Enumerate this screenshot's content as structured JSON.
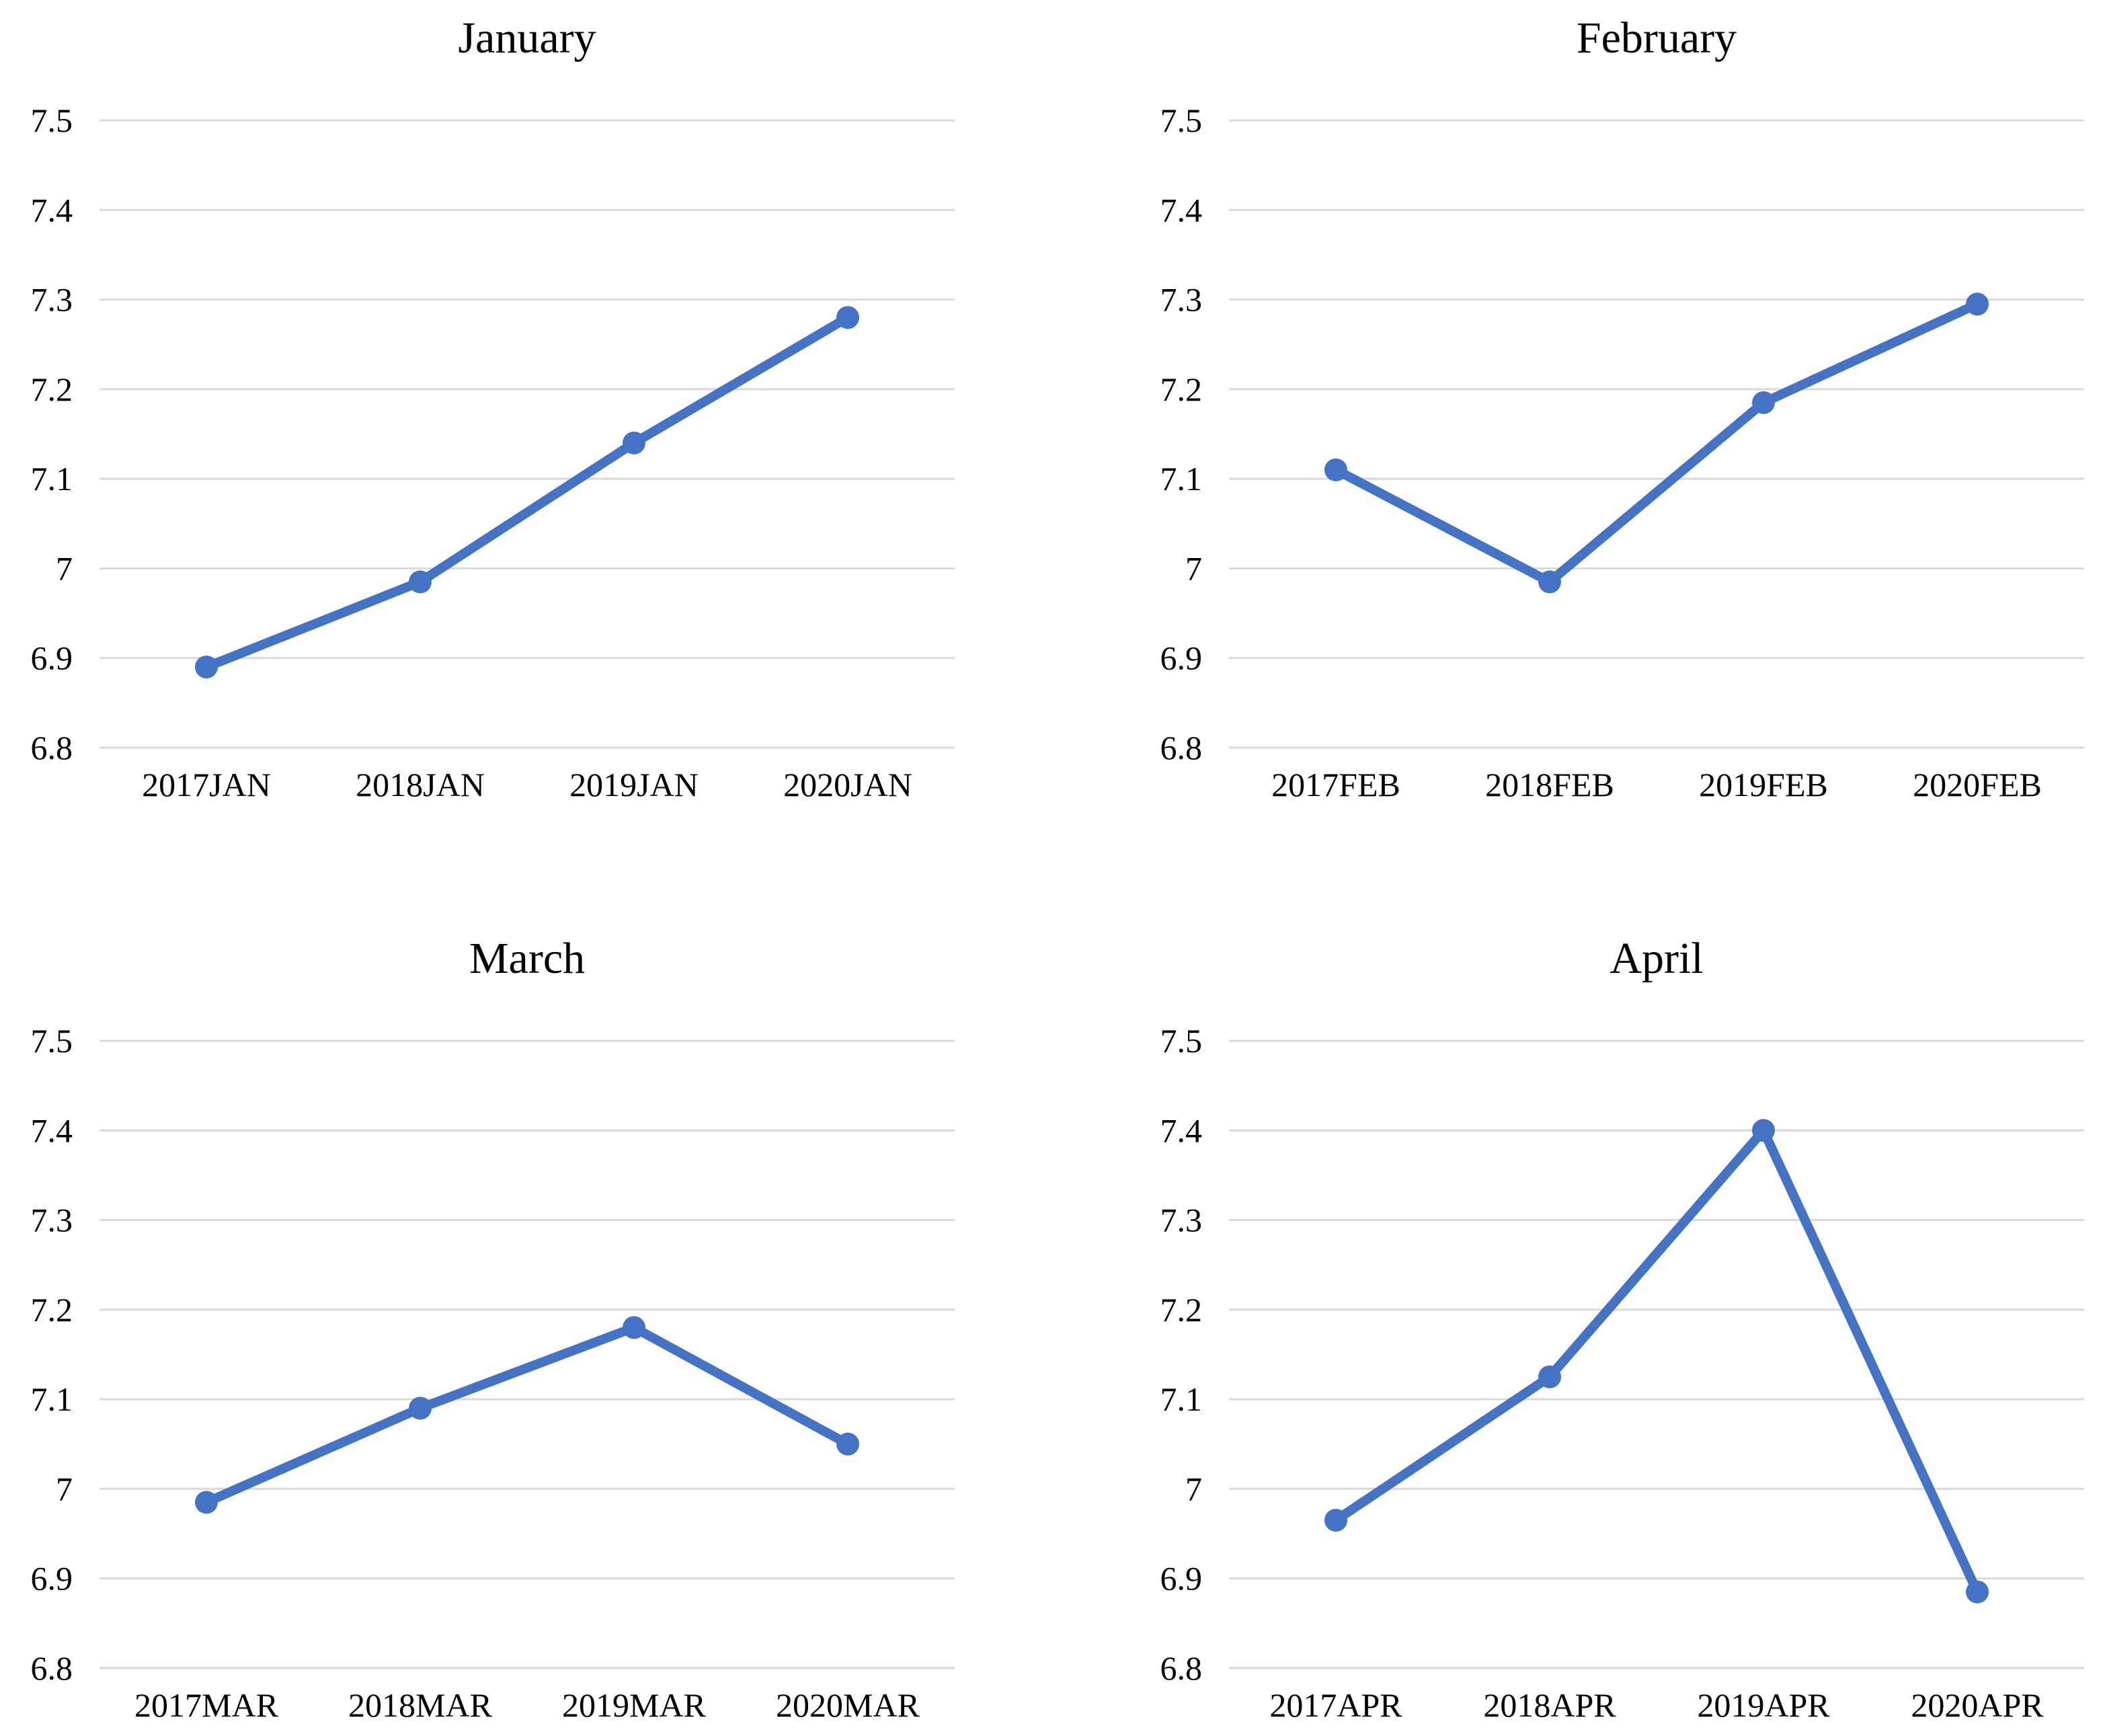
{
  "styles": {
    "background": "#FFFFFF",
    "line_color": "#4472C4",
    "grid_color": "#D9D9D9",
    "text_color": "#000000"
  },
  "chart_data": [
    {
      "type": "line",
      "title": "January",
      "categories": [
        "2017JAN",
        "2018JAN",
        "2019JAN",
        "2020JAN"
      ],
      "values": [
        6.89,
        6.985,
        7.14,
        7.28
      ],
      "xlabel": "",
      "ylabel": "",
      "ylim": [
        6.8,
        7.5
      ],
      "ytick_step": 0.1,
      "ytick_labels_top_to_bottom": [
        "7.5",
        "7.4",
        "7.3",
        "7.2",
        "7.1",
        "7",
        "6.9",
        "6.8"
      ],
      "grid": true,
      "legend": "none",
      "marker": "circle"
    },
    {
      "type": "line",
      "title": "February",
      "categories": [
        "2017FEB",
        "2018FEB",
        "2019FEB",
        "2020FEB"
      ],
      "values": [
        7.11,
        6.985,
        7.185,
        7.295
      ],
      "xlabel": "",
      "ylabel": "",
      "ylim": [
        6.8,
        7.5
      ],
      "ytick_step": 0.1,
      "ytick_labels_top_to_bottom": [
        "7.5",
        "7.4",
        "7.3",
        "7.2",
        "7.1",
        "7",
        "6.9",
        "6.8"
      ],
      "grid": true,
      "legend": "none",
      "marker": "circle"
    },
    {
      "type": "line",
      "title": "March",
      "categories": [
        "2017MAR",
        "2018MAR",
        "2019MAR",
        "2020MAR"
      ],
      "values": [
        6.985,
        7.09,
        7.18,
        7.05
      ],
      "xlabel": "",
      "ylabel": "",
      "ylim": [
        6.8,
        7.5
      ],
      "ytick_step": 0.1,
      "ytick_labels_top_to_bottom": [
        "7.5",
        "7.4",
        "7.3",
        "7.2",
        "7.1",
        "7",
        "6.9",
        "6.8"
      ],
      "grid": true,
      "legend": "none",
      "marker": "circle"
    },
    {
      "type": "line",
      "title": "April",
      "categories": [
        "2017APR",
        "2018APR",
        "2019APR",
        "2020APR"
      ],
      "values": [
        6.965,
        7.125,
        7.4,
        6.885
      ],
      "xlabel": "",
      "ylabel": "",
      "ylim": [
        6.8,
        7.5
      ],
      "ytick_step": 0.1,
      "ytick_labels_top_to_bottom": [
        "7.5",
        "7.4",
        "7.3",
        "7.2",
        "7.1",
        "7",
        "6.9",
        "6.8"
      ],
      "grid": true,
      "legend": "none",
      "marker": "circle"
    }
  ]
}
